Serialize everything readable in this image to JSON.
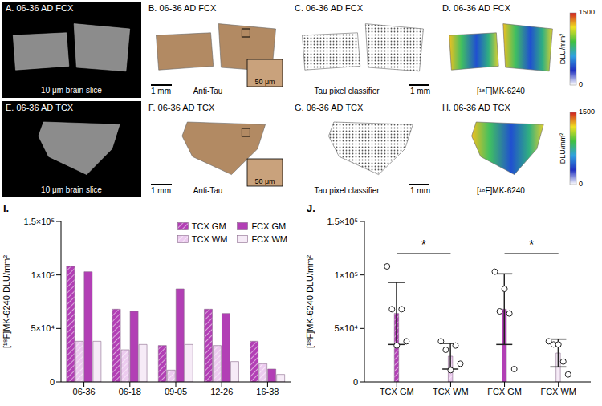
{
  "image_panels": [
    {
      "title": "A. 06-36 AD FCX",
      "kind": "photo",
      "caption": "10 μm brain slice"
    },
    {
      "title": "B. 06-36 AD FCX",
      "kind": "stain",
      "caption": "Anti-Tau",
      "scale_bar": "1 mm",
      "inset_scale_bar": "50 μm"
    },
    {
      "title": "C. 06-36 AD FCX",
      "kind": "classifier",
      "caption": "Tau pixel classifier",
      "scale_bar": "1 mm"
    },
    {
      "title": "D. 06-36 AD FCX",
      "kind": "autoradiograph",
      "caption": "[¹⁸F]MK-6240",
      "colorbar": {
        "label": "DLU/mm²",
        "range": [
          0,
          1500
        ],
        "ticks": [
          0,
          1500
        ]
      }
    },
    {
      "title": "E. 06-36 AD TCX",
      "kind": "photo",
      "caption": "10 μm brain slice"
    },
    {
      "title": "F. 06-36 AD TCX",
      "kind": "stain",
      "caption": "Anti-Tau",
      "scale_bar": "1 mm",
      "inset_scale_bar": "50 μm"
    },
    {
      "title": "G. 06-36 AD TCX",
      "kind": "classifier",
      "caption": "Tau pixel classifier",
      "scale_bar": "1 mm"
    },
    {
      "title": "H. 06-36 AD TCX",
      "kind": "autoradiograph",
      "caption": "[¹⁸F]MK-6240",
      "colorbar": {
        "label": "DLU/mm²",
        "range": [
          0,
          1500
        ],
        "ticks": [
          0,
          1500
        ]
      }
    }
  ],
  "chart_data": [
    {
      "type": "bar",
      "title": "I.",
      "categories": [
        "06-36",
        "06-18",
        "09-05",
        "12-26",
        "16-38"
      ],
      "series": [
        {
          "name": "TCX GM",
          "color": "#b23fb5",
          "values": [
            108000,
            68000,
            34000,
            68000,
            38000
          ]
        },
        {
          "name": "TCX WM",
          "color": "#eccbef",
          "values": [
            38000,
            30000,
            11000,
            34000,
            17000
          ]
        },
        {
          "name": "FCX GM",
          "color": "#b23fb5",
          "values": [
            103000,
            66000,
            87000,
            64000,
            12000
          ]
        },
        {
          "name": "FCX WM",
          "color": "#f6ebf7",
          "values": [
            38000,
            35000,
            35000,
            19000,
            7000
          ]
        }
      ],
      "y_label": "[¹⁸F]MK-6240 DLU/mm²",
      "ylim": [
        0,
        150000
      ],
      "yticks": [
        0,
        {
          "value": 50000,
          "label": "5×10⁴"
        },
        {
          "value": 100000,
          "label": "1×10⁵"
        },
        {
          "value": 150000,
          "label": "1.5×10⁵"
        }
      ],
      "grid": false,
      "legend": "upper right"
    },
    {
      "type": "bar",
      "title": "J.",
      "categories": [
        "TCX GM",
        "TCX WM",
        "FCX GM",
        "FCX WM"
      ],
      "values": [
        64000,
        24000,
        68000,
        27000
      ],
      "errors": [
        29000,
        12000,
        33000,
        13000
      ],
      "points": [
        [
          108000,
          68000,
          34000,
          68000,
          38000
        ],
        [
          38000,
          30000,
          11000,
          34000,
          17000
        ],
        [
          103000,
          66000,
          87000,
          64000,
          12000
        ],
        [
          38000,
          35000,
          35000,
          19000,
          7000
        ]
      ],
      "colors": [
        "#b23fb5",
        "#eccbef",
        "#b23fb5",
        "#f6ebf7"
      ],
      "y_label": "[¹⁸F]MK-6240 DLU/mm²",
      "ylim": [
        0,
        150000
      ],
      "yticks": [
        0,
        {
          "value": 50000,
          "label": "5×10⁴"
        },
        {
          "value": 100000,
          "label": "1×10⁵"
        },
        {
          "value": 150000,
          "label": "1.5×10⁵"
        }
      ],
      "annotations": [
        {
          "text": "*",
          "from": 0,
          "to": 1,
          "y": 120000
        },
        {
          "text": "*",
          "from": 2,
          "to": 3,
          "y": 120000
        }
      ],
      "grid": false
    }
  ]
}
